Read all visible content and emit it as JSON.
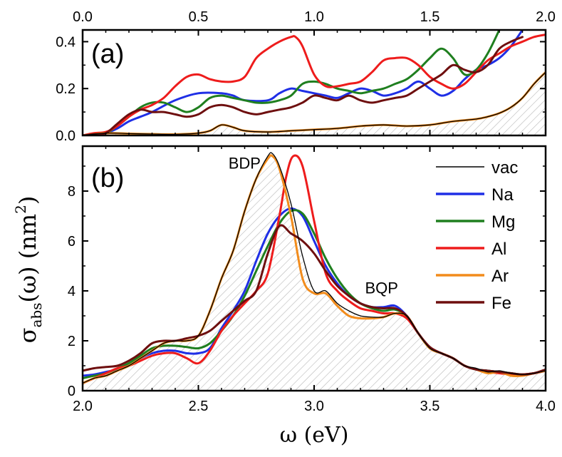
{
  "colors": {
    "vac": "#000000",
    "Na": "#1f2fe6",
    "Mg": "#1f7f1f",
    "Al": "#ee1c1c",
    "Ar": "#f28c1c",
    "Fe": "#6e0f0f",
    "hatch": "#b8b8b8"
  },
  "chart_data": [
    {
      "type": "line",
      "panel_label": "(a)",
      "xlabel": "",
      "ylabel": "",
      "xlim": [
        0.0,
        2.0
      ],
      "ylim": [
        0.0,
        0.45
      ],
      "x_ticks": [
        "0.0",
        "0.5",
        "1.0",
        "1.5",
        "2.0"
      ],
      "x_tick_values": [
        0.0,
        0.5,
        1.0,
        1.5,
        2.0
      ],
      "y_ticks": [
        "0.0",
        "0.2",
        "0.4"
      ],
      "y_tick_values": [
        0.0,
        0.2,
        0.4
      ],
      "x_axis_position": "top",
      "hatched_series": "vac",
      "series": [
        {
          "name": "vac",
          "x": [
            0.0,
            0.1,
            0.2,
            0.3,
            0.4,
            0.5,
            0.55,
            0.6,
            0.65,
            0.7,
            0.8,
            0.9,
            1.0,
            1.1,
            1.2,
            1.3,
            1.4,
            1.5,
            1.6,
            1.7,
            1.75,
            1.8,
            1.85,
            1.9,
            1.95,
            2.0
          ],
          "y": [
            0.0,
            0.01,
            0.008,
            0.006,
            0.005,
            0.01,
            0.02,
            0.045,
            0.035,
            0.02,
            0.015,
            0.02,
            0.025,
            0.03,
            0.04,
            0.045,
            0.04,
            0.045,
            0.06,
            0.07,
            0.08,
            0.095,
            0.12,
            0.16,
            0.22,
            0.27
          ]
        },
        {
          "name": "Na",
          "x": [
            0.0,
            0.05,
            0.1,
            0.15,
            0.2,
            0.25,
            0.3,
            0.4,
            0.5,
            0.6,
            0.65,
            0.7,
            0.8,
            0.85,
            0.9,
            0.95,
            1.0,
            1.05,
            1.1,
            1.15,
            1.2,
            1.25,
            1.3,
            1.35,
            1.4,
            1.45,
            1.5,
            1.55,
            1.6,
            1.65,
            1.7,
            1.75,
            1.8,
            1.85,
            1.9
          ],
          "y": [
            0.0,
            0.005,
            0.01,
            0.03,
            0.06,
            0.08,
            0.1,
            0.15,
            0.18,
            0.18,
            0.17,
            0.15,
            0.15,
            0.18,
            0.2,
            0.19,
            0.18,
            0.17,
            0.16,
            0.18,
            0.2,
            0.19,
            0.17,
            0.18,
            0.2,
            0.23,
            0.2,
            0.17,
            0.19,
            0.24,
            0.28,
            0.3,
            0.33,
            0.38,
            0.45
          ]
        },
        {
          "name": "Mg",
          "x": [
            0.0,
            0.05,
            0.1,
            0.15,
            0.2,
            0.25,
            0.3,
            0.35,
            0.4,
            0.45,
            0.5,
            0.55,
            0.6,
            0.65,
            0.7,
            0.75,
            0.8,
            0.85,
            0.9,
            0.95,
            1.0,
            1.05,
            1.1,
            1.15,
            1.2,
            1.25,
            1.3,
            1.35,
            1.4,
            1.45,
            1.5,
            1.55,
            1.6,
            1.65,
            1.7,
            1.75,
            1.8
          ],
          "y": [
            0.0,
            0.005,
            0.01,
            0.04,
            0.08,
            0.12,
            0.14,
            0.14,
            0.12,
            0.1,
            0.12,
            0.16,
            0.17,
            0.16,
            0.15,
            0.14,
            0.14,
            0.15,
            0.17,
            0.22,
            0.23,
            0.22,
            0.2,
            0.19,
            0.18,
            0.19,
            0.2,
            0.22,
            0.24,
            0.28,
            0.33,
            0.37,
            0.33,
            0.26,
            0.28,
            0.35,
            0.45
          ]
        },
        {
          "name": "Al",
          "x": [
            0.0,
            0.05,
            0.1,
            0.15,
            0.2,
            0.25,
            0.3,
            0.35,
            0.4,
            0.45,
            0.5,
            0.55,
            0.6,
            0.65,
            0.7,
            0.75,
            0.8,
            0.85,
            0.9,
            0.92,
            0.95,
            1.0,
            1.05,
            1.1,
            1.15,
            1.2,
            1.25,
            1.3,
            1.35,
            1.4,
            1.45,
            1.5,
            1.55,
            1.6,
            1.65,
            1.7,
            1.75,
            1.8,
            1.85,
            1.9,
            1.95,
            2.0
          ],
          "y": [
            0.0,
            0.01,
            0.015,
            0.04,
            0.08,
            0.11,
            0.13,
            0.16,
            0.21,
            0.25,
            0.26,
            0.24,
            0.23,
            0.23,
            0.25,
            0.33,
            0.37,
            0.4,
            0.42,
            0.42,
            0.38,
            0.26,
            0.21,
            0.21,
            0.22,
            0.23,
            0.27,
            0.32,
            0.33,
            0.33,
            0.3,
            0.25,
            0.22,
            0.2,
            0.22,
            0.27,
            0.32,
            0.35,
            0.38,
            0.4,
            0.42,
            0.43
          ]
        },
        {
          "name": "Ar",
          "x": [
            0.0,
            0.1,
            0.2,
            0.3,
            0.4,
            0.5,
            0.55,
            0.6,
            0.65,
            0.7,
            0.8,
            0.9,
            1.0,
            1.1,
            1.2,
            1.3,
            1.4,
            1.5,
            1.6,
            1.7,
            1.75,
            1.8,
            1.85,
            1.9,
            1.95,
            2.0
          ],
          "y": [
            0.0,
            0.01,
            0.008,
            0.006,
            0.005,
            0.01,
            0.02,
            0.045,
            0.035,
            0.02,
            0.015,
            0.02,
            0.025,
            0.03,
            0.04,
            0.045,
            0.04,
            0.045,
            0.06,
            0.07,
            0.08,
            0.095,
            0.12,
            0.16,
            0.22,
            0.27
          ]
        },
        {
          "name": "Fe",
          "x": [
            0.0,
            0.05,
            0.1,
            0.15,
            0.2,
            0.25,
            0.3,
            0.35,
            0.4,
            0.45,
            0.5,
            0.55,
            0.6,
            0.65,
            0.7,
            0.75,
            0.8,
            0.85,
            0.9,
            0.95,
            1.0,
            1.05,
            1.1,
            1.15,
            1.2,
            1.25,
            1.3,
            1.35,
            1.4,
            1.45,
            1.5,
            1.55,
            1.6,
            1.65,
            1.7,
            1.75,
            1.8,
            1.85,
            1.9
          ],
          "y": [
            0.0,
            0.005,
            0.01,
            0.05,
            0.09,
            0.11,
            0.1,
            0.1,
            0.09,
            0.08,
            0.09,
            0.12,
            0.13,
            0.12,
            0.1,
            0.09,
            0.1,
            0.11,
            0.12,
            0.14,
            0.17,
            0.16,
            0.15,
            0.17,
            0.15,
            0.14,
            0.15,
            0.16,
            0.17,
            0.2,
            0.23,
            0.26,
            0.3,
            0.28,
            0.27,
            0.3,
            0.37,
            0.4,
            0.42
          ]
        }
      ]
    },
    {
      "type": "line",
      "panel_label": "(b)",
      "xlabel": "ω (eV)",
      "ylabel_main": "σ",
      "ylabel_sub": "abs",
      "ylabel_rest": "(ω) (nm",
      "ylabel_sup": "2",
      "ylabel_close": ")",
      "xlim": [
        2.0,
        4.0
      ],
      "ylim": [
        0.0,
        9.8
      ],
      "x_ticks": [
        "2.0",
        "2.5",
        "3.0",
        "3.5",
        "4.0"
      ],
      "x_tick_values": [
        2.0,
        2.5,
        3.0,
        3.5,
        4.0
      ],
      "y_ticks": [
        "0",
        "2",
        "4",
        "6",
        "8"
      ],
      "y_tick_values": [
        0,
        2,
        4,
        6,
        8
      ],
      "hatched_series": "vac",
      "annotations": [
        {
          "text": "BDP",
          "x": 2.63,
          "y": 8.9
        },
        {
          "text": "BQP",
          "x": 3.22,
          "y": 3.9
        }
      ],
      "legend": {
        "position": "top-right",
        "entries": [
          "vac",
          "Na",
          "Mg",
          "Al",
          "Ar",
          "Fe"
        ]
      },
      "series": [
        {
          "name": "vac",
          "x": [
            2.0,
            2.05,
            2.1,
            2.15,
            2.2,
            2.25,
            2.3,
            2.35,
            2.4,
            2.45,
            2.5,
            2.55,
            2.6,
            2.65,
            2.7,
            2.75,
            2.8,
            2.82,
            2.85,
            2.9,
            2.95,
            3.0,
            3.05,
            3.1,
            3.15,
            3.2,
            3.25,
            3.3,
            3.35,
            3.4,
            3.45,
            3.5,
            3.55,
            3.6,
            3.65,
            3.7,
            3.75,
            3.8,
            3.85,
            3.9,
            3.95,
            4.0
          ],
          "y": [
            0.3,
            0.5,
            0.6,
            0.8,
            1.0,
            1.3,
            1.6,
            1.9,
            2.0,
            2.0,
            2.2,
            3.2,
            4.5,
            5.6,
            7.2,
            8.5,
            9.4,
            9.5,
            9.0,
            7.5,
            5.4,
            4.0,
            4.0,
            3.5,
            3.2,
            3.0,
            2.95,
            2.95,
            3.1,
            3.0,
            2.3,
            1.7,
            1.5,
            1.3,
            1.0,
            0.9,
            0.75,
            0.8,
            0.7,
            0.65,
            0.7,
            0.8
          ]
        },
        {
          "name": "Na",
          "x": [
            2.0,
            2.05,
            2.1,
            2.15,
            2.2,
            2.25,
            2.3,
            2.35,
            2.4,
            2.45,
            2.5,
            2.55,
            2.6,
            2.65,
            2.7,
            2.75,
            2.8,
            2.85,
            2.9,
            2.95,
            3.0,
            3.05,
            3.1,
            3.15,
            3.2,
            3.25,
            3.3,
            3.35,
            3.4,
            3.45,
            3.5,
            3.55,
            3.6,
            3.65,
            3.7,
            3.75,
            3.8,
            3.85,
            3.9,
            3.95,
            4.0
          ],
          "y": [
            0.6,
            0.65,
            0.75,
            0.85,
            1.0,
            1.3,
            1.5,
            1.6,
            1.6,
            1.5,
            1.5,
            1.7,
            2.5,
            3.2,
            4.0,
            5.2,
            6.3,
            7.0,
            7.3,
            7.0,
            6.0,
            5.0,
            4.3,
            3.8,
            3.5,
            3.35,
            3.35,
            3.4,
            3.0,
            2.3,
            1.7,
            1.5,
            1.3,
            1.0,
            0.85,
            0.8,
            0.75,
            0.7,
            0.65,
            0.7,
            0.8
          ]
        },
        {
          "name": "Mg",
          "x": [
            2.0,
            2.05,
            2.1,
            2.15,
            2.2,
            2.25,
            2.3,
            2.35,
            2.4,
            2.45,
            2.5,
            2.55,
            2.6,
            2.65,
            2.7,
            2.75,
            2.8,
            2.85,
            2.9,
            2.95,
            3.0,
            3.05,
            3.1,
            3.15,
            3.2,
            3.25,
            3.3,
            3.35,
            3.4,
            3.45,
            3.5,
            3.55,
            3.6,
            3.65,
            3.7,
            3.75,
            3.8,
            3.85,
            3.9,
            3.95,
            4.0
          ],
          "y": [
            0.5,
            0.6,
            0.7,
            0.9,
            1.1,
            1.4,
            1.7,
            1.8,
            1.8,
            1.75,
            1.7,
            1.9,
            2.4,
            3.0,
            3.8,
            4.8,
            5.8,
            6.7,
            7.2,
            7.1,
            6.3,
            5.3,
            4.5,
            3.9,
            3.5,
            3.3,
            3.2,
            3.25,
            3.0,
            2.3,
            1.7,
            1.5,
            1.3,
            1.0,
            0.85,
            0.8,
            0.75,
            0.7,
            0.65,
            0.7,
            0.8
          ]
        },
        {
          "name": "Al",
          "x": [
            2.0,
            2.05,
            2.1,
            2.15,
            2.2,
            2.25,
            2.3,
            2.35,
            2.4,
            2.45,
            2.5,
            2.55,
            2.6,
            2.65,
            2.7,
            2.75,
            2.8,
            2.85,
            2.88,
            2.91,
            2.95,
            3.0,
            3.05,
            3.1,
            3.15,
            3.2,
            3.25,
            3.3,
            3.35,
            3.4,
            3.45,
            3.5,
            3.55,
            3.6,
            3.65,
            3.7,
            3.75,
            3.8,
            3.85,
            3.9,
            3.95,
            4.0
          ],
          "y": [
            0.3,
            0.5,
            0.7,
            0.9,
            1.0,
            1.2,
            1.4,
            1.5,
            1.5,
            1.3,
            1.1,
            1.6,
            2.4,
            3.0,
            3.5,
            4.0,
            4.7,
            7.0,
            8.6,
            9.4,
            9.0,
            6.8,
            4.7,
            4.0,
            3.6,
            3.3,
            3.2,
            3.1,
            3.1,
            2.9,
            2.3,
            1.7,
            1.5,
            1.3,
            1.0,
            0.85,
            0.75,
            0.7,
            0.65,
            0.65,
            0.7,
            0.8
          ]
        },
        {
          "name": "Ar",
          "x": [
            2.0,
            2.05,
            2.1,
            2.15,
            2.2,
            2.25,
            2.3,
            2.35,
            2.4,
            2.45,
            2.5,
            2.55,
            2.6,
            2.65,
            2.7,
            2.75,
            2.8,
            2.82,
            2.85,
            2.9,
            2.95,
            3.0,
            3.05,
            3.1,
            3.15,
            3.2,
            3.25,
            3.3,
            3.35,
            3.4,
            3.45,
            3.5,
            3.55,
            3.6,
            3.65,
            3.7,
            3.75,
            3.8,
            3.85,
            3.9,
            3.95,
            4.0
          ],
          "y": [
            0.3,
            0.5,
            0.6,
            0.8,
            1.0,
            1.3,
            1.6,
            1.9,
            2.0,
            2.0,
            2.2,
            3.2,
            4.5,
            5.6,
            7.2,
            8.5,
            9.3,
            9.4,
            8.9,
            7.0,
            4.5,
            3.9,
            3.9,
            3.4,
            3.0,
            2.9,
            2.9,
            2.95,
            3.1,
            3.0,
            2.3,
            1.7,
            1.5,
            1.3,
            1.0,
            0.85,
            0.7,
            0.75,
            0.6,
            0.6,
            0.7,
            0.8
          ]
        },
        {
          "name": "Fe",
          "x": [
            2.0,
            2.05,
            2.1,
            2.15,
            2.2,
            2.25,
            2.3,
            2.35,
            2.4,
            2.45,
            2.5,
            2.55,
            2.6,
            2.65,
            2.7,
            2.75,
            2.8,
            2.85,
            2.9,
            2.95,
            3.0,
            3.05,
            3.1,
            3.15,
            3.2,
            3.25,
            3.3,
            3.35,
            3.4,
            3.45,
            3.5,
            3.55,
            3.6,
            3.65,
            3.7,
            3.75,
            3.8,
            3.85,
            3.9,
            3.95,
            4.0
          ],
          "y": [
            0.8,
            0.9,
            0.95,
            1.0,
            1.2,
            1.5,
            1.9,
            2.0,
            2.0,
            2.1,
            2.2,
            2.4,
            2.8,
            3.2,
            3.6,
            4.0,
            5.5,
            6.6,
            6.3,
            6.0,
            5.5,
            4.8,
            4.2,
            3.8,
            3.5,
            3.35,
            3.3,
            3.3,
            3.0,
            2.3,
            1.75,
            1.5,
            1.3,
            1.0,
            0.85,
            0.8,
            0.75,
            0.7,
            0.65,
            0.7,
            0.85
          ]
        }
      ]
    }
  ]
}
